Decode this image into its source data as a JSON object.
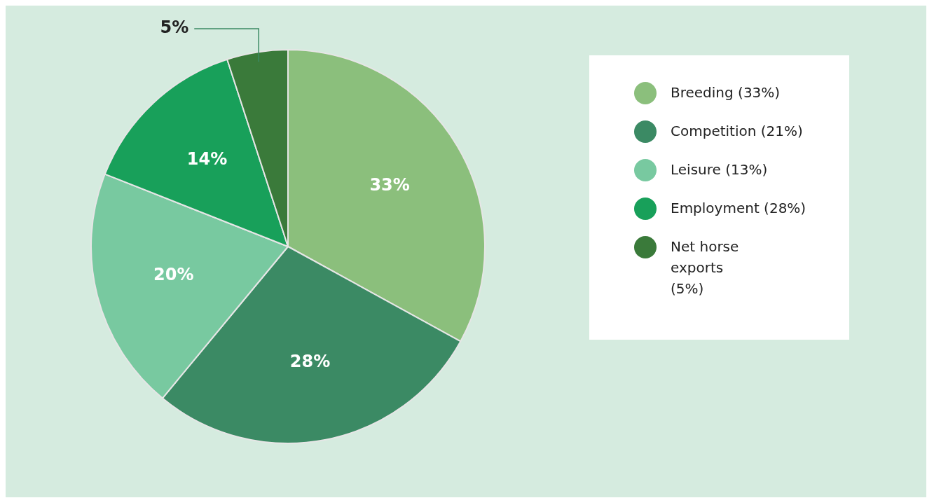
{
  "chart_data": {
    "type": "pie",
    "categories": [
      "Breeding (33%)",
      "Competition (21%)",
      "Leisure (13%)",
      "Employment (28%)",
      "Net horse exports (5%)"
    ],
    "values": [
      33,
      28,
      20,
      14,
      5
    ],
    "colors": [
      "#8bbf7c",
      "#3b8a64",
      "#78c9a0",
      "#18a05a",
      "#3a7a3a"
    ],
    "value_labels": [
      "33%",
      "28%",
      "20%",
      "14%",
      "5%"
    ],
    "legend": "right"
  }
}
